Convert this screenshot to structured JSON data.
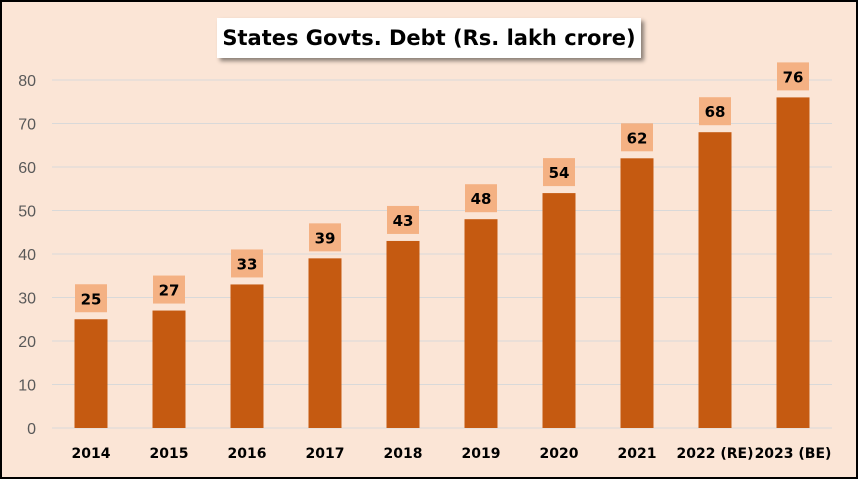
{
  "chart_data": {
    "type": "bar",
    "title": "States Govts. Debt (Rs. lakh crore)",
    "categories": [
      "2014",
      "2015",
      "2016",
      "2017",
      "2018",
      "2019",
      "2020",
      "2021",
      "2022 (RE)",
      "2023 (BE)"
    ],
    "values": [
      25,
      27,
      33,
      39,
      43,
      48,
      54,
      62,
      68,
      76
    ],
    "data_labels": [
      "25",
      "27",
      "33",
      "39",
      "43",
      "48",
      "54",
      "62",
      "68",
      "76"
    ],
    "ylim": [
      0,
      80
    ],
    "yticks": [
      "0",
      "10",
      "20",
      "30",
      "40",
      "50",
      "60",
      "70",
      "80"
    ],
    "xlabel": "",
    "ylabel": "",
    "grid": true,
    "legend": "none"
  },
  "colors": {
    "background": "#fbe5d6",
    "bar": "#c55a11",
    "label_box": "#f4b183",
    "gridline": "#d9d9d9"
  }
}
